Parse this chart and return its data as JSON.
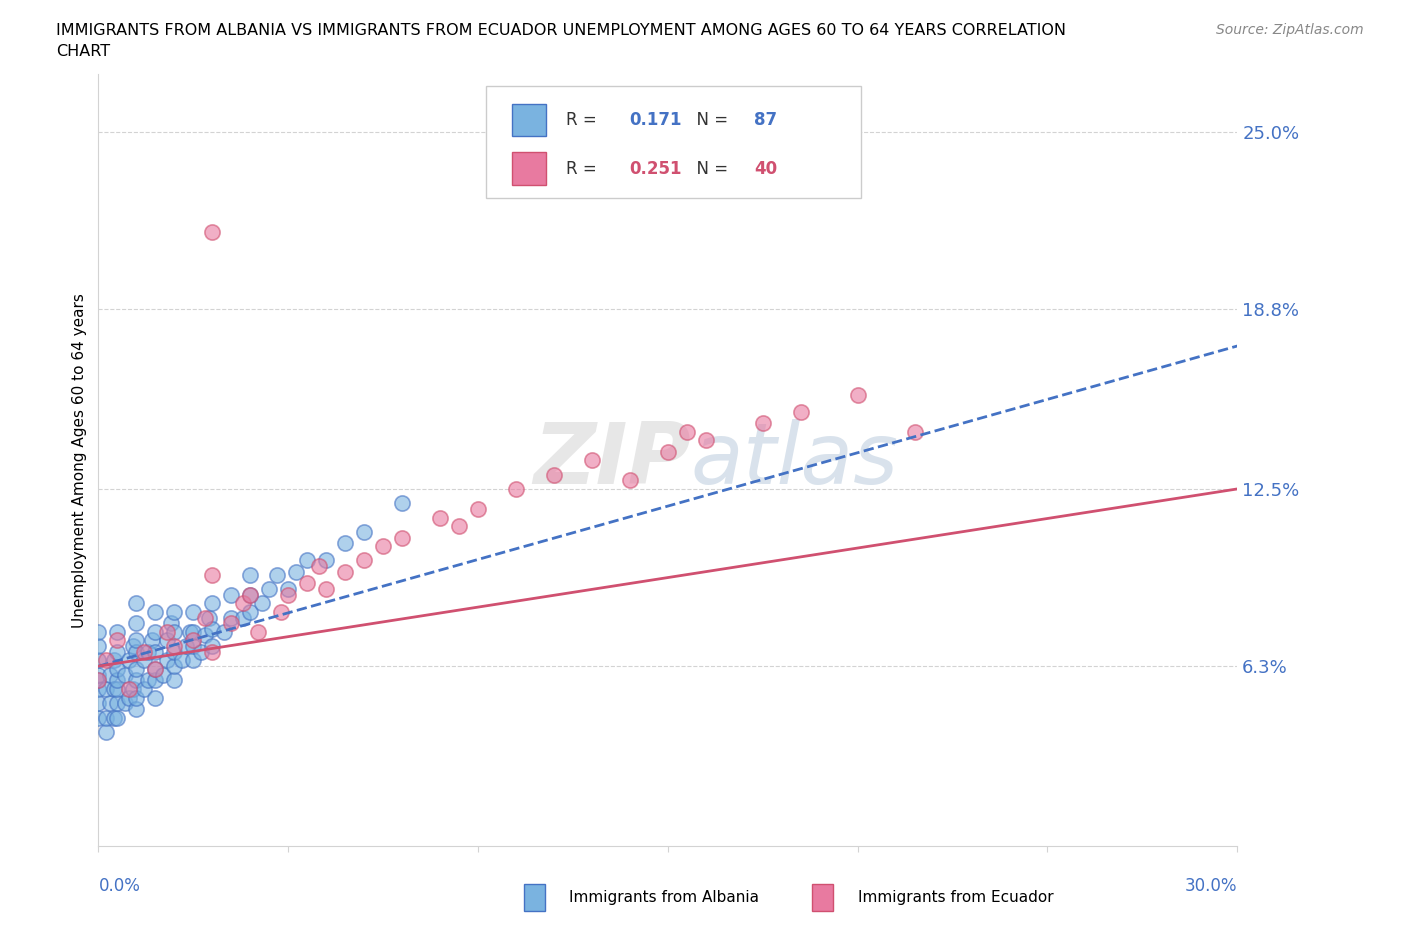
{
  "title_line1": "IMMIGRANTS FROM ALBANIA VS IMMIGRANTS FROM ECUADOR UNEMPLOYMENT AMONG AGES 60 TO 64 YEARS CORRELATION",
  "title_line2": "CHART",
  "source_text": "Source: ZipAtlas.com",
  "ylabel": "Unemployment Among Ages 60 to 64 years",
  "ytick_vals": [
    0.0,
    0.063,
    0.125,
    0.188,
    0.25
  ],
  "ytick_labels": [
    "",
    "6.3%",
    "12.5%",
    "18.8%",
    "25.0%"
  ],
  "xlim": [
    0.0,
    0.3
  ],
  "ylim": [
    0.0,
    0.27
  ],
  "watermark": "ZIPatlas",
  "legend_albania_R": "0.171",
  "legend_albania_N": "87",
  "legend_ecuador_R": "0.251",
  "legend_ecuador_N": "40",
  "color_albania": "#7ab3e0",
  "color_ecuador": "#e87aa0",
  "color_blue": "#4472c4",
  "color_pink": "#d05070",
  "color_axis_labels": "#4472c4",
  "trendline_albania_x0": 0.0,
  "trendline_albania_y0": 0.063,
  "trendline_albania_x1": 0.3,
  "trendline_albania_y1": 0.175,
  "trendline_ecuador_x0": 0.0,
  "trendline_ecuador_y0": 0.063,
  "trendline_ecuador_x1": 0.3,
  "trendline_ecuador_y1": 0.125
}
